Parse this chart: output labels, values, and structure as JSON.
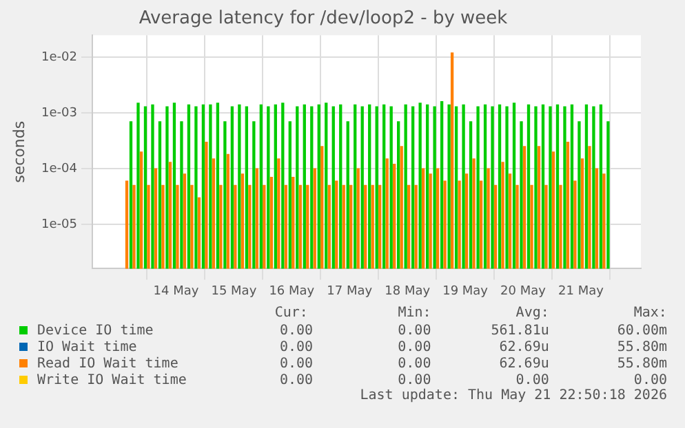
{
  "chart_data": {
    "type": "bar",
    "title": "Average latency for /dev/loop2 - by week",
    "ylabel": "seconds",
    "log": "y",
    "grid": true,
    "legend": "bottom",
    "x": [
      "2026-05-13T16:00",
      "2026-05-13T19:00",
      "2026-05-13T22:00",
      "2026-05-14T01:00",
      "2026-05-14T04:00",
      "2026-05-14T07:00",
      "2026-05-14T10:00",
      "2026-05-14T13:00",
      "2026-05-14T16:00",
      "2026-05-14T19:00",
      "2026-05-14T22:00",
      "2026-05-15T01:00",
      "2026-05-15T04:00",
      "2026-05-15T07:00",
      "2026-05-15T10:00",
      "2026-05-15T13:00",
      "2026-05-15T16:00",
      "2026-05-15T19:00",
      "2026-05-15T22:00",
      "2026-05-16T01:00",
      "2026-05-16T04:00",
      "2026-05-16T07:00",
      "2026-05-16T10:00",
      "2026-05-16T13:00",
      "2026-05-16T16:00",
      "2026-05-16T19:00",
      "2026-05-16T22:00",
      "2026-05-17T01:00",
      "2026-05-17T04:00",
      "2026-05-17T07:00",
      "2026-05-17T10:00",
      "2026-05-17T13:00",
      "2026-05-17T16:00",
      "2026-05-17T19:00",
      "2026-05-17T22:00",
      "2026-05-18T01:00",
      "2026-05-18T04:00",
      "2026-05-18T07:00",
      "2026-05-18T10:00",
      "2026-05-18T13:00",
      "2026-05-18T16:00",
      "2026-05-18T19:00",
      "2026-05-18T22:00",
      "2026-05-19T01:00",
      "2026-05-19T04:00",
      "2026-05-19T07:00",
      "2026-05-19T10:00",
      "2026-05-19T13:00",
      "2026-05-19T16:00",
      "2026-05-19T19:00",
      "2026-05-19T22:00",
      "2026-05-20T01:00",
      "2026-05-20T04:00",
      "2026-05-20T07:00",
      "2026-05-20T10:00",
      "2026-05-20T13:00",
      "2026-05-20T16:00",
      "2026-05-20T19:00",
      "2026-05-20T22:00",
      "2026-05-21T01:00",
      "2026-05-21T04:00",
      "2026-05-21T07:00",
      "2026-05-21T10:00",
      "2026-05-21T13:00",
      "2026-05-21T16:00",
      "2026-05-21T19:00",
      "2026-05-21T22:00"
    ],
    "xlim": [
      "2026-05-13T15:30",
      "2026-05-21T22:40"
    ],
    "xticks": [
      {
        "value": "2026-05-14T12:00",
        "label": "14 May"
      },
      {
        "value": "2026-05-15T12:00",
        "label": "15 May"
      },
      {
        "value": "2026-05-16T12:00",
        "label": "16 May"
      },
      {
        "value": "2026-05-17T12:00",
        "label": "17 May"
      },
      {
        "value": "2026-05-18T12:00",
        "label": "18 May"
      },
      {
        "value": "2026-05-19T12:00",
        "label": "19 May"
      },
      {
        "value": "2026-05-20T12:00",
        "label": "20 May"
      },
      {
        "value": "2026-05-21T12:00",
        "label": "21 May"
      }
    ],
    "ylim": [
      1.6e-06,
      0.025
    ],
    "yticks": [
      {
        "value": 1e-05,
        "label": "1e-05"
      },
      {
        "value": 0.0001,
        "label": "1e-04"
      },
      {
        "value": 0.001,
        "label": "1e-03"
      },
      {
        "value": 0.01,
        "label": "1e-02"
      }
    ],
    "series": [
      {
        "name": "Device IO time",
        "color": "#00cc00",
        "values": [
          0.0007,
          0.0015,
          0.0013,
          0.0014,
          0.0007,
          0.0013,
          0.0015,
          0.0007,
          0.0014,
          0.0013,
          0.0014,
          0.0014,
          0.0015,
          0.0007,
          0.0013,
          0.0014,
          0.0013,
          0.0007,
          0.0014,
          0.0013,
          0.0014,
          0.0015,
          0.0007,
          0.0013,
          0.0014,
          0.0013,
          0.0014,
          0.0015,
          0.0013,
          0.0014,
          0.0007,
          0.0014,
          0.0013,
          0.0014,
          0.0013,
          0.0014,
          0.0013,
          0.0007,
          0.0014,
          0.0013,
          0.0015,
          0.0014,
          0.0013,
          0.0016,
          0.0014,
          0.0013,
          0.0014,
          0.0007,
          0.0013,
          0.0014,
          0.0013,
          0.0014,
          0.0013,
          0.0015,
          0.0007,
          0.0014,
          0.0013,
          0.0014,
          0.0013,
          0.0014,
          0.0013,
          0.0014,
          0.0007,
          0.0014,
          0.0013,
          0.0014,
          0.0007
        ]
      },
      {
        "name": "IO Wait time",
        "color": "#0066b3",
        "values": [
          null,
          null,
          null,
          null,
          null,
          null,
          null,
          null,
          null,
          null,
          null,
          null,
          null,
          null,
          null,
          null,
          null,
          null,
          null,
          null,
          null,
          null,
          null,
          null,
          null,
          null,
          null,
          null,
          null,
          null,
          null,
          null,
          null,
          null,
          null,
          null,
          null,
          null,
          null,
          null,
          null,
          null,
          null,
          null,
          null,
          null,
          null,
          null,
          null,
          null,
          null,
          null,
          null,
          null,
          null,
          null,
          null,
          null,
          null,
          null,
          null,
          null,
          null,
          null,
          null,
          null,
          null
        ]
      },
      {
        "name": "Read IO Wait time",
        "color": "#ff8000",
        "values": [
          6e-05,
          5e-05,
          0.0002,
          5e-05,
          0.0001,
          5e-05,
          0.00013,
          5e-05,
          8e-05,
          5e-05,
          3e-05,
          0.0003,
          0.00015,
          5e-05,
          0.00018,
          5e-05,
          8e-05,
          5e-05,
          0.0001,
          5e-05,
          7e-05,
          0.00015,
          5e-05,
          7e-05,
          5e-05,
          5e-05,
          0.0001,
          0.00025,
          5e-05,
          6e-05,
          5e-05,
          5e-05,
          0.0001,
          5e-05,
          5e-05,
          5e-05,
          0.00015,
          0.00012,
          0.00025,
          5e-05,
          5e-05,
          0.0001,
          8e-05,
          0.0001,
          6e-05,
          0.012,
          6e-05,
          8e-05,
          0.00015,
          6e-05,
          0.0001,
          5e-05,
          0.00013,
          8e-05,
          5e-05,
          0.00025,
          5e-05,
          0.00025,
          5e-05,
          0.0002,
          5e-05,
          0.0003,
          6e-05,
          0.00015,
          0.00025,
          0.0001,
          8e-05
        ]
      },
      {
        "name": "Write IO Wait time",
        "color": "#ffcc00",
        "values": [
          null,
          null,
          null,
          null,
          null,
          null,
          null,
          null,
          null,
          null,
          null,
          null,
          null,
          null,
          null,
          null,
          null,
          null,
          null,
          null,
          null,
          null,
          null,
          null,
          null,
          null,
          null,
          null,
          null,
          null,
          null,
          null,
          null,
          null,
          null,
          null,
          null,
          null,
          null,
          null,
          null,
          null,
          null,
          null,
          null,
          null,
          null,
          null,
          null,
          null,
          null,
          null,
          null,
          null,
          null,
          null,
          null,
          null,
          null,
          null,
          null,
          null,
          null,
          null,
          null,
          null,
          null
        ]
      }
    ],
    "annotations": [
      "Cur:",
      "Min:",
      "Avg:",
      "Max:",
      "0.00",
      "0.00",
      "561.81u",
      "60.00m",
      "0.00",
      "0.00",
      "62.69u",
      "55.80m",
      "0.00",
      "0.00",
      "62.69u",
      "55.80m",
      "0.00",
      "0.00",
      "0.00",
      "0.00",
      "Last update: Thu May 21 22:50:18 2026"
    ]
  }
}
